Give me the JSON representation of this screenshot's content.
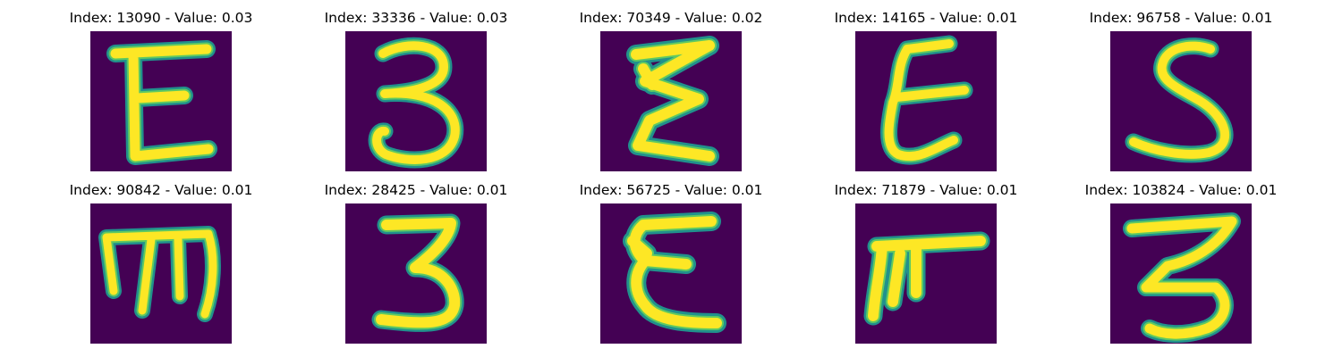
{
  "colors": {
    "background": "#440154",
    "stroke_core": "#fde725",
    "stroke_edge": "#21918c",
    "stroke_mid": "#5ec962"
  },
  "grid": {
    "tiles": [
      {
        "title": "Index: 13090 - Value: 0.03",
        "glyph": "E"
      },
      {
        "title": "Index: 33336 - Value: 0.03",
        "glyph": "3"
      },
      {
        "title": "Index: 70349 - Value: 0.02",
        "glyph": "E"
      },
      {
        "title": "Index: 14165 - Value: 0.01",
        "glyph": "E"
      },
      {
        "title": "Index: 96758 - Value: 0.01",
        "glyph": "S"
      },
      {
        "title": "Index: 90842 - Value: 0.01",
        "glyph": "m"
      },
      {
        "title": "Index: 28425 - Value: 0.01",
        "glyph": "3"
      },
      {
        "title": "Index: 56725 - Value: 0.01",
        "glyph": "E"
      },
      {
        "title": "Index: 71879 - Value: 0.01",
        "glyph": "F"
      },
      {
        "title": "Index: 103824 - Value: 0.01",
        "glyph": "3"
      }
    ]
  }
}
